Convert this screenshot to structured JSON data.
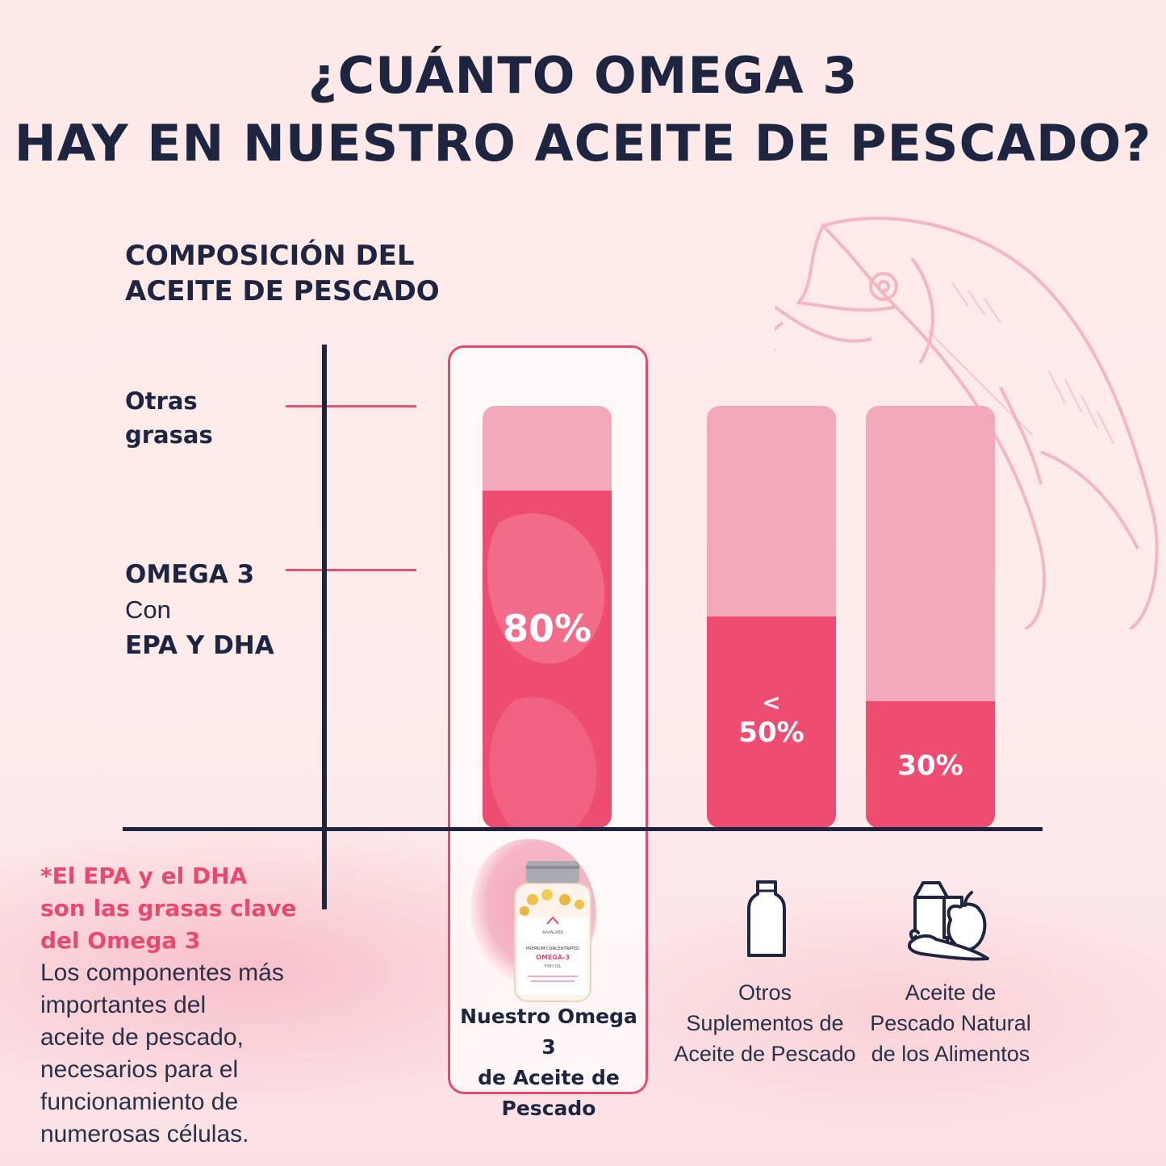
{
  "title": {
    "line1": "¿CUÁNTO OMEGA 3",
    "line2": "HAY EN NUESTRO ACEITE DE PESCADO?"
  },
  "subtitle": {
    "line1": "COMPOSICIÓN DEL",
    "line2": "ACEITE DE PESCADO"
  },
  "y_labels": {
    "other_line1": "Otras",
    "other_line2": "grasas",
    "omega_bold": "OMEGA 3",
    "omega_con": "Con",
    "omega_epa": "EPA Y DHA"
  },
  "product": {
    "bottle_brand": "AAVALABS",
    "bottle_sub": "PREMIUM CONCENTRATED",
    "bottle_name": "OMEGA-3",
    "bottle_type": "FISH OIL"
  },
  "footnote": {
    "line1": "*El EPA y el DHA",
    "line2": "son las grasas clave",
    "line3": "del Omega 3",
    "body1": "Los componentes más",
    "body2": "importantes del",
    "body3": "aceite de pescado,",
    "body4": "necesarios para el",
    "body5": "funcionamiento de",
    "body6": "numerosas células."
  },
  "colors": {
    "navy": "#1d2540",
    "pink_accent": "#e8496f",
    "bar_light": "#f3a9b9",
    "bar_fill": "#ee4d72"
  },
  "icons": [
    "bottle-icon",
    "food-basket-icon",
    "fish-illustration"
  ],
  "chart_data": {
    "type": "bar",
    "stacked": true,
    "categories": [
      [
        "Nuestro Omega 3",
        "de Aceite de",
        "Pescado"
      ],
      [
        "Otros",
        "Suplementos de",
        "Aceite de Pescado"
      ],
      [
        "Aceite de",
        "Pescado Natural",
        "de los Alimentos"
      ]
    ],
    "series": [
      {
        "name": "OMEGA 3 Con EPA Y DHA",
        "values": [
          80,
          50,
          30
        ]
      },
      {
        "name": "Otras grasas",
        "values": [
          20,
          50,
          70
        ]
      }
    ],
    "value_labels": [
      "80%",
      "50%",
      "30%"
    ],
    "value_prefixes": [
      "",
      "<",
      ""
    ],
    "ylim": [
      0,
      100
    ],
    "highlighted_index": 0
  }
}
